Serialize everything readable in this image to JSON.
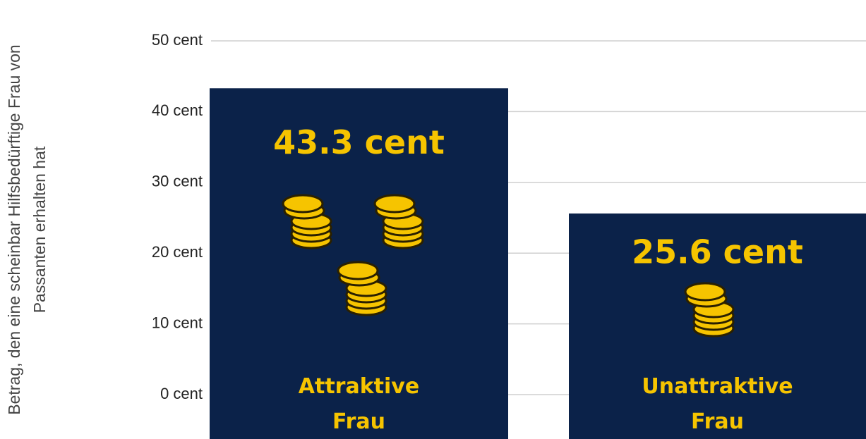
{
  "chart_data": {
    "type": "bar",
    "y_label": "Betrag, den eine scheinbar Hilfsbedürftige Frau von Passanten erhalten hat",
    "categories": [
      "Attraktive Frau",
      "Unattraktive Frau"
    ],
    "values": [
      43.3,
      25.6
    ],
    "value_labels": [
      "43.3 cent",
      "25.6 cent"
    ],
    "color": "#0b2249",
    "label_color": "#f6c400",
    "ylim": [
      0,
      50
    ],
    "yticks": [
      {
        "value": 0,
        "label": "0 cent"
      },
      {
        "value": 10,
        "label": "10 cent"
      },
      {
        "value": 20,
        "label": "20 cent"
      },
      {
        "value": 30,
        "label": "30 cent"
      },
      {
        "value": 40,
        "label": "40 cent"
      },
      {
        "value": 50,
        "label": "50 cent"
      }
    ],
    "grid": true
  }
}
